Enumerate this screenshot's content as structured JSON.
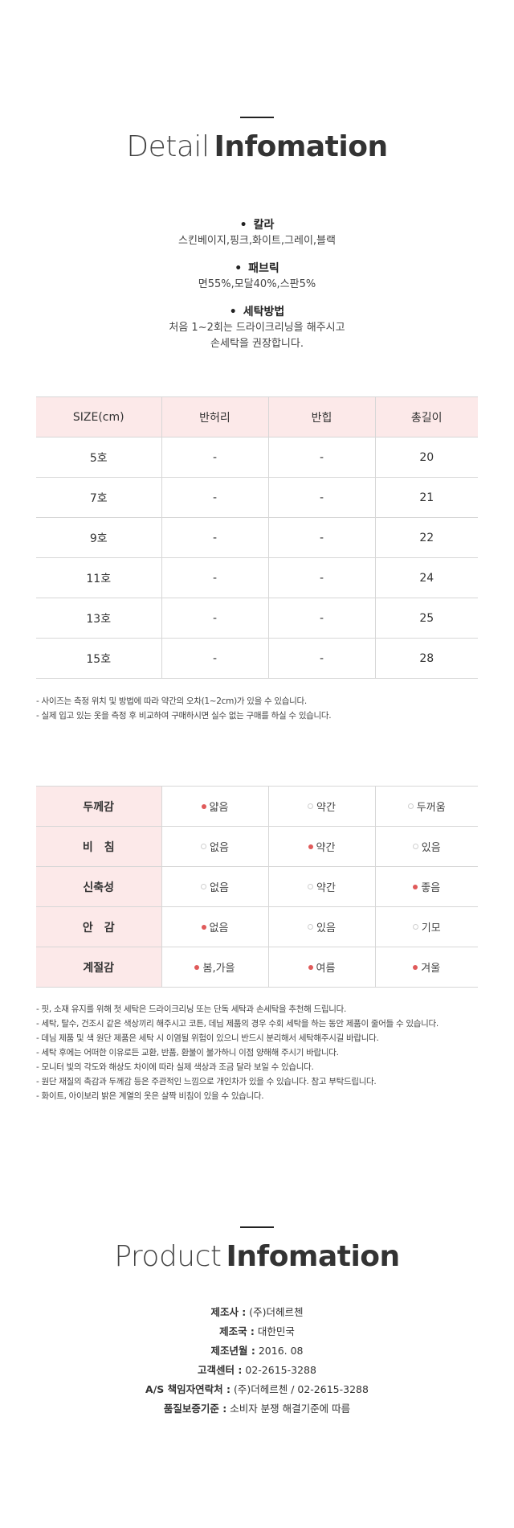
{
  "detail_header": {
    "light": "Detail",
    "bold": "Infomation"
  },
  "info": {
    "bullet": "•",
    "items": [
      {
        "title": "칼라",
        "lines": [
          "스킨베이지,핑크,화이트,그레이,블랙"
        ]
      },
      {
        "title": "패브릭",
        "lines": [
          "면55%,모달40%,스판5%"
        ]
      },
      {
        "title": "세탁방법",
        "lines": [
          "처음 1~2회는 드라이크리닝을 해주시고",
          "손세탁을 권장합니다."
        ]
      }
    ]
  },
  "size_table": {
    "headers": [
      "SIZE(cm)",
      "반허리",
      "반힙",
      "총길이"
    ],
    "rows": [
      [
        "5호",
        "-",
        "-",
        "20"
      ],
      [
        "7호",
        "-",
        "-",
        "21"
      ],
      [
        "9호",
        "-",
        "-",
        "22"
      ],
      [
        "11호",
        "-",
        "-",
        "24"
      ],
      [
        "13호",
        "-",
        "-",
        "25"
      ],
      [
        "15호",
        "-",
        "-",
        "28"
      ]
    ]
  },
  "size_notes": [
    "- 사이즈는 측정 위치 및 방법에 따라 약간의 오차(1~2cm)가 있을 수 있습니다.",
    "- 실제 입고 있는 옷을 측정 후 비교하여 구매하시면 실수 없는 구매를 하실 수 있습니다."
  ],
  "feel_table": {
    "rows": [
      {
        "label": "두께감",
        "options": [
          {
            "text": "얇음",
            "on": true
          },
          {
            "text": "약간",
            "on": false
          },
          {
            "text": "두꺼움",
            "on": false
          }
        ]
      },
      {
        "label": "비　침",
        "options": [
          {
            "text": "없음",
            "on": false
          },
          {
            "text": "약간",
            "on": true
          },
          {
            "text": "있음",
            "on": false
          }
        ]
      },
      {
        "label": "신축성",
        "options": [
          {
            "text": "없음",
            "on": false
          },
          {
            "text": "약간",
            "on": false
          },
          {
            "text": "좋음",
            "on": true
          }
        ]
      },
      {
        "label": "안　감",
        "options": [
          {
            "text": "없음",
            "on": true
          },
          {
            "text": "있음",
            "on": false
          },
          {
            "text": "기모",
            "on": false
          }
        ]
      },
      {
        "label": "계절감",
        "options": [
          {
            "text": "봄,가을",
            "on": true
          },
          {
            "text": "여름",
            "on": true
          },
          {
            "text": "겨울",
            "on": true
          }
        ]
      }
    ],
    "dot_color": "#e05a5a"
  },
  "care_notes": [
    "- 핏, 소재 유지를 위해 첫 세탁은 드라이크리닝 또는 단독 세탁과 손세탁을 추천해 드립니다.",
    "- 세탁, 탈수, 건조시 같은 색상끼리 해주시고 코튼, 데님 제품의 경우 수회 세탁을 하는 동안 제품이 줄어들 수 있습니다.",
    "- 데님 제품 및 색 원단 제품은 세탁 시 이염될 위험이 있으니 반드시 분리해서 세탁해주시길 바랍니다.",
    "- 세탁 후에는 어떠한 이유로든 교환, 반품, 환불이 불가하니 이점 양해해 주시기 바랍니다.",
    "- 모니터 빛의 각도와 해상도 차이에 따라 실제 색상과 조금 달라 보일 수 있습니다.",
    "- 원단 재질의 촉감과 두께감 등은 주관적인 느낌으로 개인차가 있을 수 있습니다. 참고 부탁드립니다.",
    "- 화이트, 아이보리 밝은 계열의 옷은 살짝 비침이 있을 수 있습니다."
  ],
  "product_header": {
    "light": "Product",
    "bold": "Infomation"
  },
  "product_info": [
    {
      "key": "제조사 :",
      "value": " (주)더헤르첸"
    },
    {
      "key": "제조국 :",
      "value": " 대한민국"
    },
    {
      "key": "제조년월 :",
      "value": " 2016. 08"
    },
    {
      "key": "고객센터 :",
      "value": " 02-2615-3288"
    },
    {
      "key": "A/S 책임자연락처 :",
      "value": " (주)더헤르첸 / 02-2615-3288"
    },
    {
      "key": "품질보증기준 :",
      "value": " 소비자 분쟁 해결기준에 따름"
    }
  ]
}
